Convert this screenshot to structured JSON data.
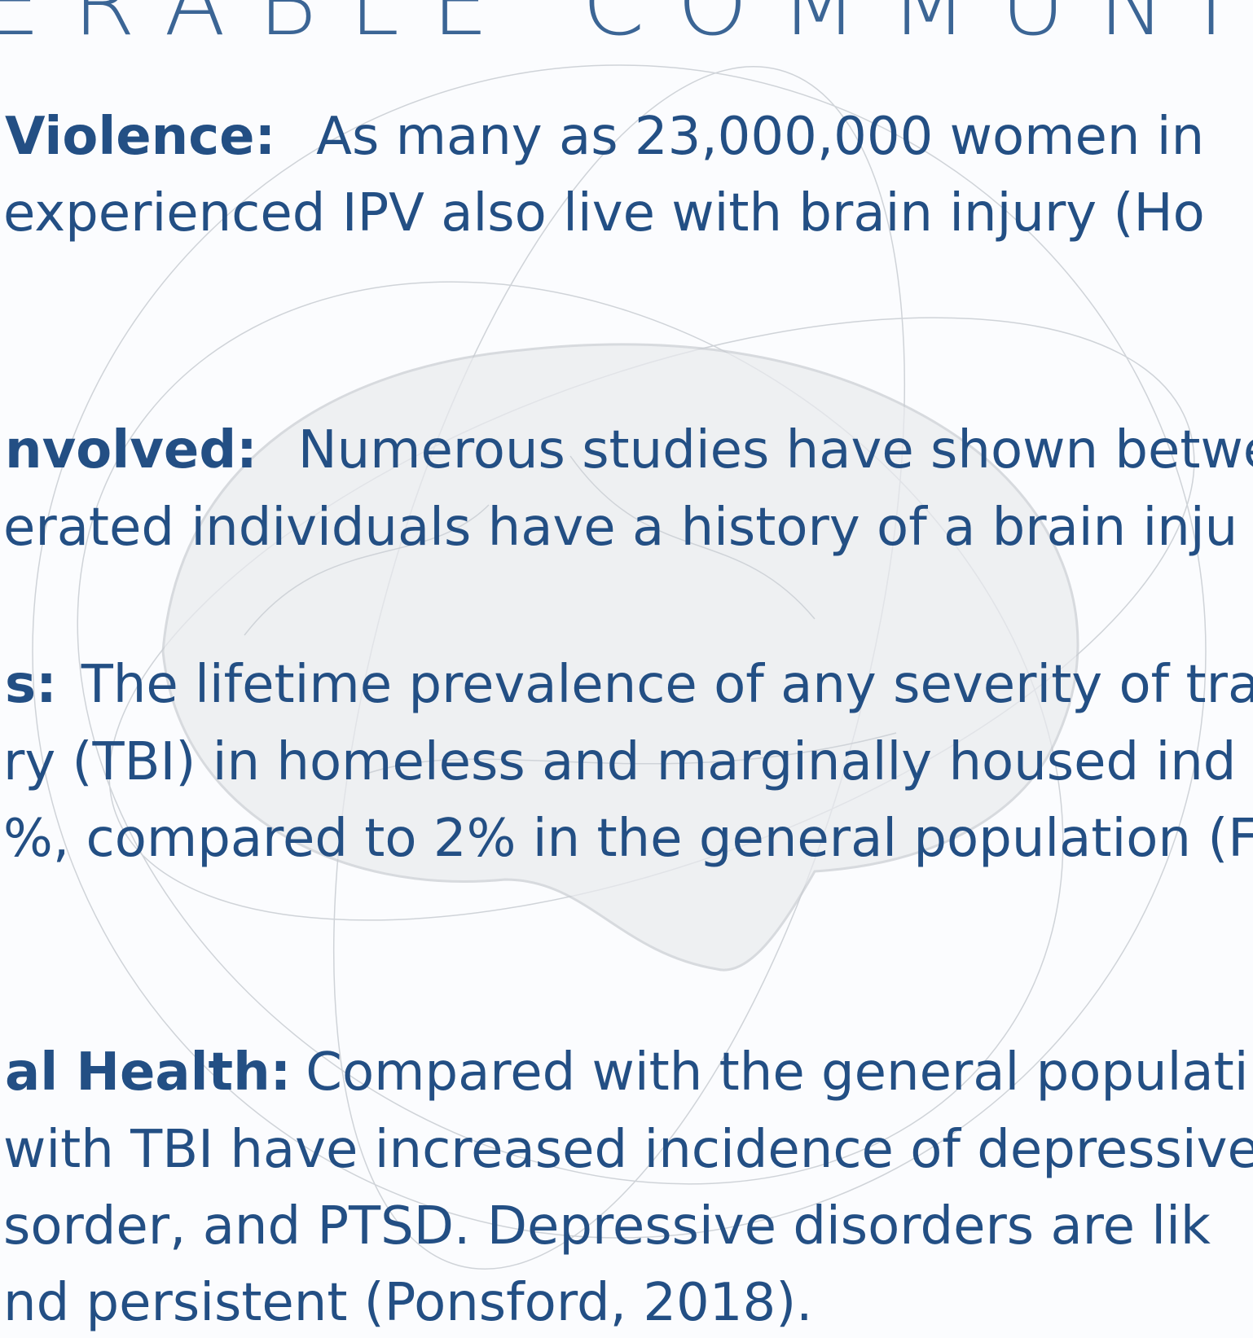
{
  "header": {
    "title": "ERABLE COMMUNITIES"
  },
  "sections": [
    {
      "label": "Violence:",
      "lines": [
        "As many as 23,000,000 women in",
        "experienced IPV also live with brain injury (Ho"
      ]
    },
    {
      "label": "nvolved:",
      "lines": [
        "Numerous studies have shown betwe",
        "erated individuals have a history of a brain inju"
      ]
    },
    {
      "label": "s:",
      "lines": [
        "The lifetime prevalence of any severity of tra",
        "ry (TBI) in homeless and marginally housed ind",
        "%, compared to 2% in the general population (F"
      ]
    },
    {
      "label": "al Health:",
      "lines": [
        "Compared with the general populati",
        "with TBI have increased incidence of depressive",
        "sorder, and PTSD. Depressive disorders are lik",
        "nd persistent (Ponsford, 2018)."
      ]
    }
  ]
}
